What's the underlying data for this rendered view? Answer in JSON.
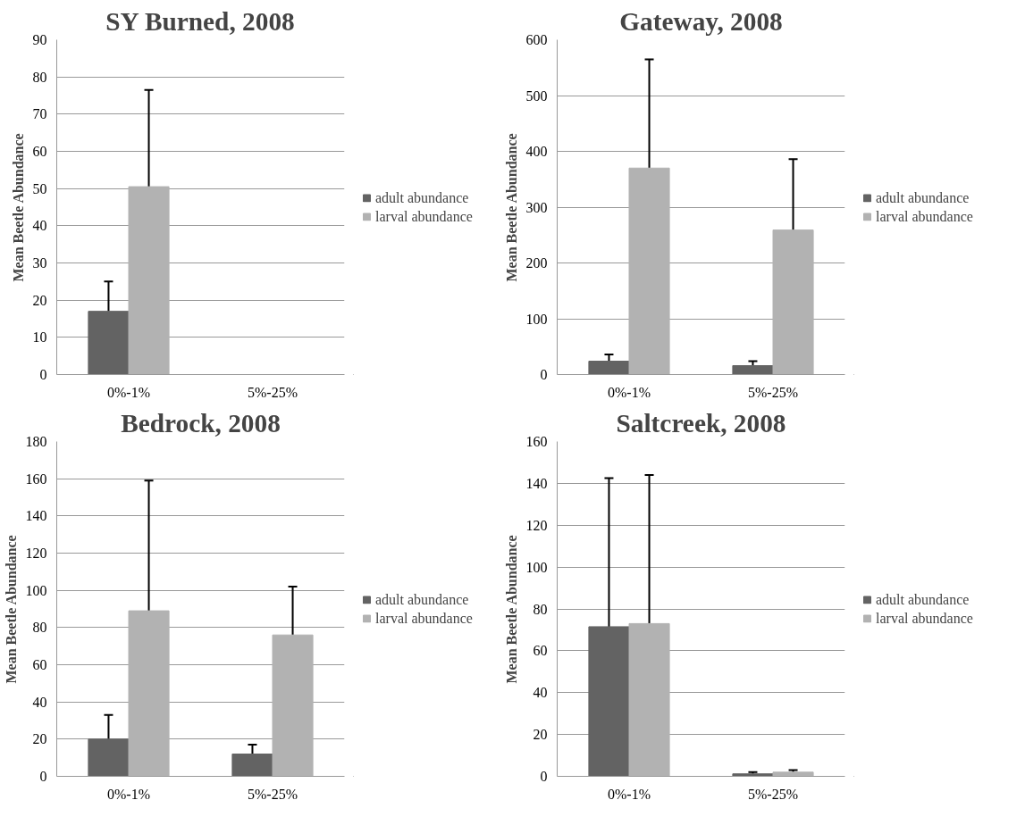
{
  "chart_data": [
    {
      "type": "bar",
      "title": "SY Burned, 2008",
      "ylabel": "Mean Beetle Abundance",
      "categories": [
        "0%-1%",
        "5%-25%"
      ],
      "ylim": [
        0,
        90
      ],
      "yticks": [
        0,
        10,
        20,
        30,
        40,
        50,
        60,
        70,
        80,
        90
      ],
      "grid": "y",
      "legend": "right",
      "series": [
        {
          "name": "adult abundance",
          "color": "#636363",
          "values": [
            17,
            null
          ],
          "errors": [
            [
              17,
              25
            ],
            null
          ]
        },
        {
          "name": "larval abundance",
          "color": "#b2b2b2",
          "values": [
            50.5,
            null
          ],
          "errors": [
            [
              50.5,
              76.5
            ],
            null
          ]
        }
      ]
    },
    {
      "type": "bar",
      "title": "Gateway, 2008",
      "ylabel": "Mean Beetle Abundance",
      "categories": [
        "0%-1%",
        "5%-25%"
      ],
      "ylim": [
        0,
        600
      ],
      "yticks": [
        0,
        100,
        200,
        300,
        400,
        500,
        600
      ],
      "grid": "y",
      "legend": "right",
      "series": [
        {
          "name": "adult abundance",
          "color": "#636363",
          "values": [
            24,
            16
          ],
          "errors": [
            [
              24,
              36
            ],
            [
              16,
              24
            ]
          ]
        },
        {
          "name": "larval abundance",
          "color": "#b2b2b2",
          "values": [
            370,
            259
          ],
          "errors": [
            [
              370,
              565
            ],
            [
              259,
              386
            ]
          ]
        }
      ]
    },
    {
      "type": "bar",
      "title": "Bedrock, 2008",
      "ylabel": "Mean Beetle Abundance",
      "categories": [
        "0%-1%",
        "5%-25%"
      ],
      "ylim": [
        0,
        180
      ],
      "yticks": [
        0,
        20,
        40,
        60,
        80,
        100,
        120,
        140,
        160,
        180
      ],
      "grid": "y",
      "legend": "right",
      "series": [
        {
          "name": "adult abundance",
          "color": "#636363",
          "values": [
            20,
            12
          ],
          "errors": [
            [
              20,
              33
            ],
            [
              12,
              17
            ]
          ]
        },
        {
          "name": "larval abundance",
          "color": "#b2b2b2",
          "values": [
            89,
            76
          ],
          "errors": [
            [
              89,
              159
            ],
            [
              76,
              102
            ]
          ]
        }
      ]
    },
    {
      "type": "bar",
      "title": "Saltcreek, 2008",
      "ylabel": "Mean Beetle Abundance",
      "categories": [
        "0%-1%",
        "5%-25%"
      ],
      "ylim": [
        0,
        160
      ],
      "yticks": [
        0,
        20,
        40,
        60,
        80,
        100,
        120,
        140,
        160
      ],
      "grid": "y",
      "legend": "right",
      "series": [
        {
          "name": "adult abundance",
          "color": "#636363",
          "values": [
            71.5,
            1.2
          ],
          "errors": [
            [
              71.5,
              142.5
            ],
            [
              1.2,
              2
            ]
          ]
        },
        {
          "name": "larval abundance",
          "color": "#b2b2b2",
          "values": [
            73,
            2
          ],
          "errors": [
            [
              73,
              144
            ],
            [
              2,
              3
            ]
          ]
        }
      ]
    }
  ]
}
